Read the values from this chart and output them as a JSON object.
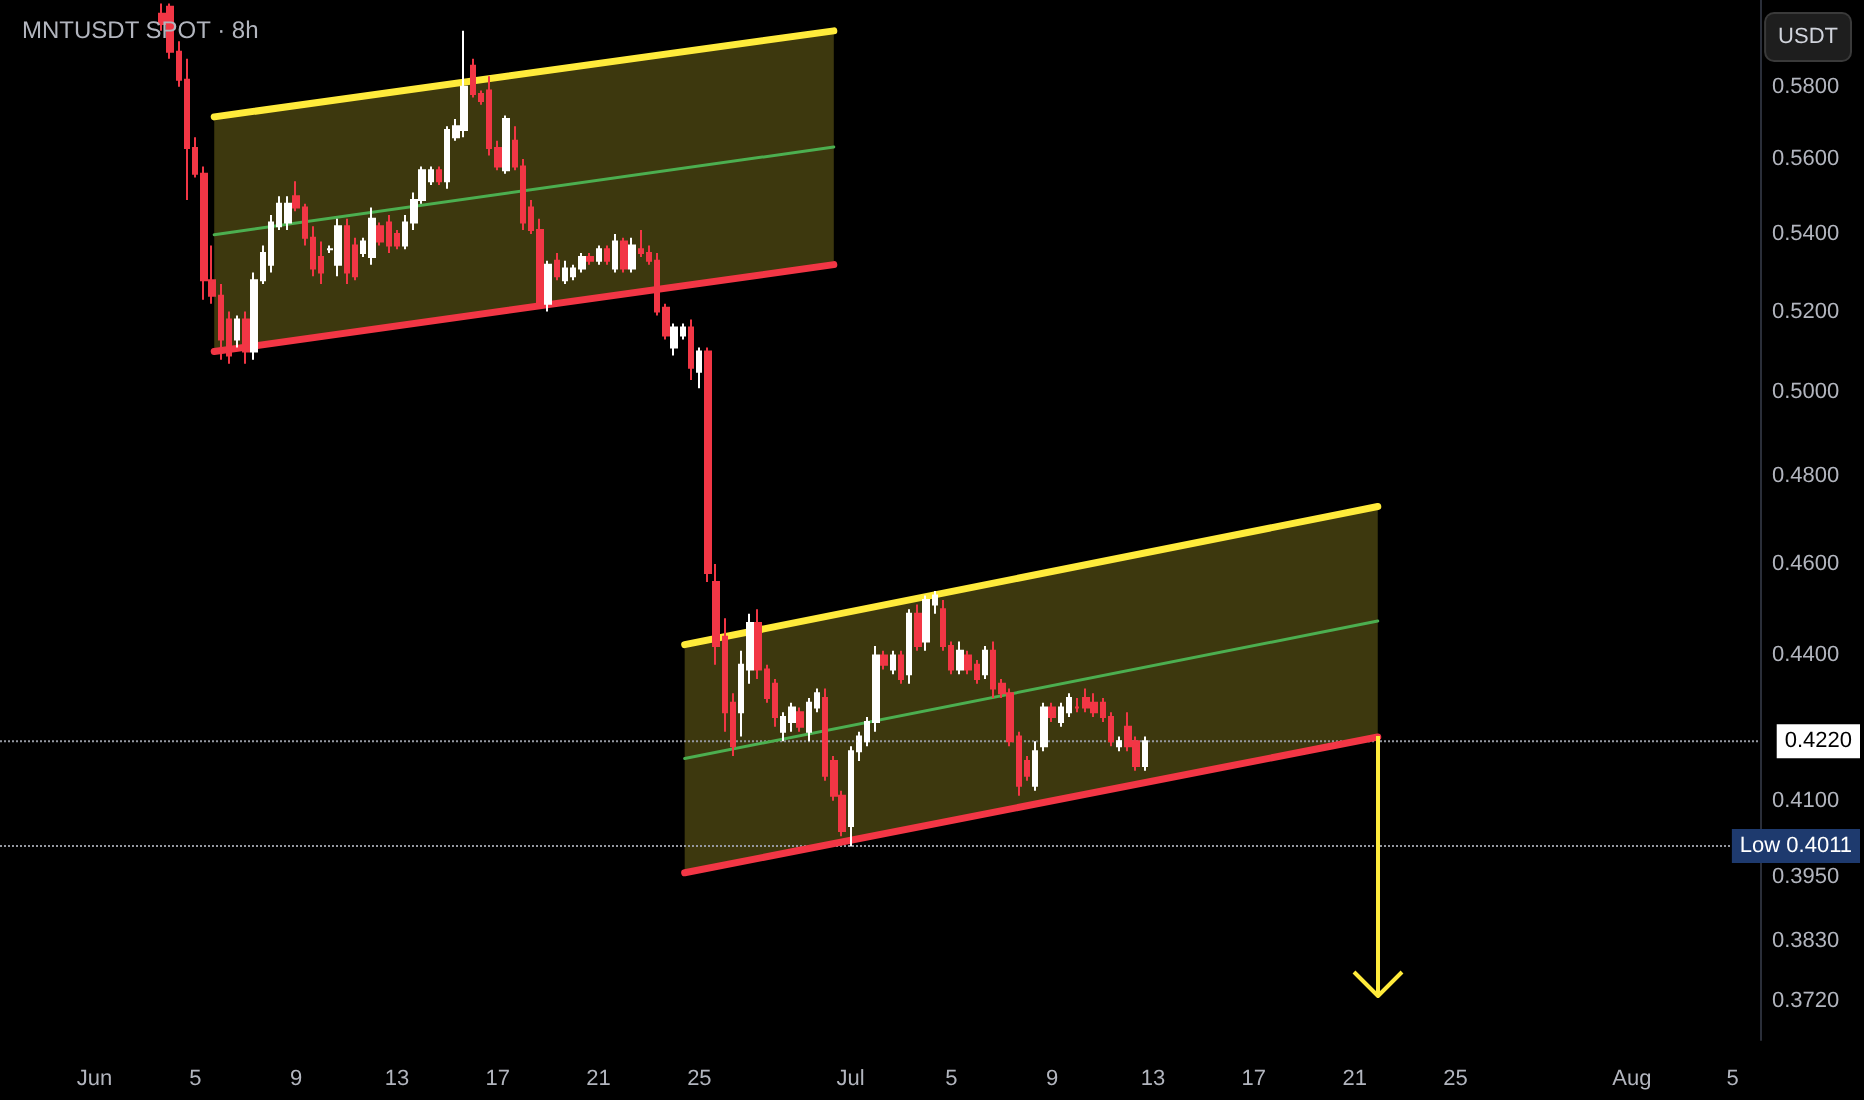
{
  "chart_data": {
    "type": "candlestick",
    "title": "MNTUSDT SPOT · 8h",
    "annotations": [
      "USDT"
    ],
    "x": [
      "--06-03T16:00",
      "--06-04T00:00",
      "--06-04T08:00",
      "--06-04T16:00",
      "--06-05T00:00",
      "--06-05T08:00",
      "--06-05T16:00",
      "--06-06T00:00",
      "--06-06T08:00",
      "--06-06T16:00",
      "--06-07T00:00",
      "--06-07T08:00",
      "--06-07T16:00",
      "--06-08T00:00",
      "--06-08T08:00",
      "--06-08T16:00",
      "--06-09T00:00",
      "--06-09T08:00",
      "--06-09T16:00",
      "--06-10T00:00",
      "--06-10T08:00",
      "--06-10T16:00",
      "--06-11T00:00",
      "--06-11T08:00",
      "--06-11T16:00",
      "--06-12T00:00",
      "--06-12T08:00",
      "--06-12T16:00",
      "--06-13T00:00",
      "--06-13T08:00",
      "--06-13T16:00",
      "--06-14T00:00",
      "--06-14T08:00",
      "--06-14T16:00",
      "--06-15T00:00",
      "--06-15T08:00",
      "--06-15T16:00",
      "--06-16T00:00",
      "--06-16T08:00",
      "--06-16T16:00",
      "--06-17T00:00",
      "--06-17T08:00",
      "--06-17T16:00",
      "--06-18T00:00",
      "--06-18T08:00",
      "--06-18T16:00",
      "--06-19T00:00",
      "--06-19T08:00",
      "--06-19T16:00",
      "--06-20T00:00",
      "--06-20T08:00",
      "--06-20T16:00",
      "--06-21T00:00",
      "--06-21T08:00",
      "--06-21T16:00",
      "--06-22T00:00",
      "--06-22T08:00",
      "--06-22T16:00",
      "--06-23T00:00",
      "--06-23T08:00",
      "--06-23T16:00",
      "--06-24T00:00",
      "--06-24T08:00",
      "--06-24T16:00",
      "--06-25T00:00",
      "--06-25T08:00",
      "--06-25T16:00",
      "--06-26T00:00",
      "--06-26T08:00",
      "--06-26T16:00",
      "--06-27T00:00",
      "--06-27T08:00",
      "--06-27T16:00",
      "--06-28T00:00",
      "--06-28T08:00",
      "--06-28T16:00",
      "--06-29T00:00",
      "--06-29T08:00",
      "--06-29T16:00",
      "--06-30T00:00",
      "--06-30T08:00",
      "--06-30T16:00",
      "--07-01T00:00",
      "--07-01T08:00",
      "--07-01T16:00",
      "--07-02T00:00",
      "--07-02T08:00",
      "--07-02T16:00",
      "--07-03T00:00",
      "--07-03T08:00",
      "--07-03T16:00",
      "--07-04T00:00",
      "--07-04T08:00",
      "--07-04T16:00",
      "--07-05T00:00",
      "--07-05T08:00",
      "--07-05T16:00",
      "--07-06T00:00",
      "--07-06T08:00",
      "--07-06T16:00",
      "--07-07T00:00",
      "--07-07T08:00",
      "--07-07T16:00",
      "--07-08T00:00",
      "--07-08T08:00",
      "--07-08T16:00",
      "--07-09T00:00",
      "--07-09T08:00",
      "--07-09T16:00",
      "--07-10T00:00",
      "--07-10T08:00",
      "--07-10T16:00",
      "--07-11T00:00",
      "--07-11T08:00",
      "--07-11T16:00",
      "--07-12T00:00",
      "--07-12T08:00",
      "--07-12T16:00"
    ],
    "ohlc": [
      [
        0.601,
        0.604,
        0.596,
        0.598
      ],
      [
        0.603,
        0.604,
        0.588,
        0.59
      ],
      [
        0.59,
        0.593,
        0.58,
        0.582
      ],
      [
        0.582,
        0.588,
        0.549,
        0.563
      ],
      [
        0.563,
        0.566,
        0.555,
        0.556
      ],
      [
        0.556,
        0.558,
        0.523,
        0.528
      ],
      [
        0.528,
        0.537,
        0.522,
        0.524
      ],
      [
        0.524,
        0.527,
        0.508,
        0.513
      ],
      [
        0.518,
        0.52,
        0.507,
        0.509
      ],
      [
        0.513,
        0.519,
        0.511,
        0.518
      ],
      [
        0.518,
        0.52,
        0.507,
        0.51
      ],
      [
        0.51,
        0.53,
        0.508,
        0.528
      ],
      [
        0.528,
        0.537,
        0.527,
        0.535
      ],
      [
        0.532,
        0.545,
        0.53,
        0.543
      ],
      [
        0.542,
        0.55,
        0.541,
        0.548
      ],
      [
        0.543,
        0.55,
        0.541,
        0.548
      ],
      [
        0.55,
        0.554,
        0.546,
        0.547
      ],
      [
        0.547,
        0.548,
        0.537,
        0.539
      ],
      [
        0.539,
        0.542,
        0.529,
        0.531
      ],
      [
        0.534,
        0.538,
        0.527,
        0.53
      ],
      [
        0.536,
        0.537,
        0.535,
        0.536
      ],
      [
        0.532,
        0.544,
        0.529,
        0.542
      ],
      [
        0.542,
        0.544,
        0.527,
        0.53
      ],
      [
        0.537,
        0.539,
        0.528,
        0.529
      ],
      [
        0.535,
        0.539,
        0.534,
        0.538
      ],
      [
        0.534,
        0.547,
        0.532,
        0.544
      ],
      [
        0.542,
        0.543,
        0.537,
        0.538
      ],
      [
        0.543,
        0.545,
        0.535,
        0.537
      ],
      [
        0.54,
        0.541,
        0.536,
        0.537
      ],
      [
        0.537,
        0.545,
        0.536,
        0.543
      ],
      [
        0.543,
        0.551,
        0.541,
        0.549
      ],
      [
        0.549,
        0.558,
        0.548,
        0.557
      ],
      [
        0.554,
        0.558,
        0.553,
        0.557
      ],
      [
        0.557,
        0.558,
        0.553,
        0.554
      ],
      [
        0.554,
        0.569,
        0.552,
        0.568
      ],
      [
        0.566,
        0.571,
        0.565,
        0.569
      ],
      [
        0.568,
        0.596,
        0.566,
        0.58
      ],
      [
        0.586,
        0.588,
        0.577,
        0.578
      ],
      [
        0.578,
        0.579,
        0.575,
        0.576
      ],
      [
        0.579,
        0.583,
        0.561,
        0.563
      ],
      [
        0.563,
        0.565,
        0.557,
        0.558
      ],
      [
        0.557,
        0.572,
        0.556,
        0.571
      ],
      [
        0.565,
        0.569,
        0.557,
        0.558
      ],
      [
        0.558,
        0.56,
        0.541,
        0.543
      ],
      [
        0.547,
        0.549,
        0.54,
        0.541
      ],
      [
        0.541,
        0.544,
        0.521,
        0.522
      ],
      [
        0.522,
        0.533,
        0.52,
        0.532
      ],
      [
        0.533,
        0.535,
        0.528,
        0.529
      ],
      [
        0.528,
        0.533,
        0.527,
        0.531
      ],
      [
        0.529,
        0.532,
        0.528,
        0.531
      ],
      [
        0.531,
        0.535,
        0.53,
        0.534
      ],
      [
        0.534,
        0.535,
        0.532,
        0.533
      ],
      [
        0.533,
        0.537,
        0.532,
        0.536
      ],
      [
        0.536,
        0.537,
        0.532,
        0.533
      ],
      [
        0.531,
        0.54,
        0.53,
        0.538
      ],
      [
        0.538,
        0.539,
        0.53,
        0.531
      ],
      [
        0.531,
        0.539,
        0.53,
        0.537
      ],
      [
        0.536,
        0.541,
        0.534,
        0.535
      ],
      [
        0.535,
        0.537,
        0.532,
        0.533
      ],
      [
        0.533,
        0.535,
        0.519,
        0.52
      ],
      [
        0.521,
        0.522,
        0.513,
        0.514
      ],
      [
        0.511,
        0.517,
        0.509,
        0.516
      ],
      [
        0.514,
        0.517,
        0.513,
        0.516
      ],
      [
        0.516,
        0.518,
        0.503,
        0.506
      ],
      [
        0.505,
        0.511,
        0.501,
        0.51
      ],
      [
        0.51,
        0.511,
        0.456,
        0.458
      ],
      [
        0.456,
        0.46,
        0.438,
        0.442
      ],
      [
        0.444,
        0.448,
        0.424,
        0.428
      ],
      [
        0.43,
        0.432,
        0.419,
        0.421
      ],
      [
        0.428,
        0.441,
        0.423,
        0.438
      ],
      [
        0.437,
        0.449,
        0.434,
        0.447
      ],
      [
        0.447,
        0.45,
        0.435,
        0.437
      ],
      [
        0.437,
        0.438,
        0.43,
        0.431
      ],
      [
        0.434,
        0.435,
        0.425,
        0.427
      ],
      [
        0.424,
        0.428,
        0.422,
        0.427
      ],
      [
        0.426,
        0.43,
        0.424,
        0.429
      ],
      [
        0.428,
        0.429,
        0.424,
        0.425
      ],
      [
        0.424,
        0.431,
        0.422,
        0.43
      ],
      [
        0.429,
        0.433,
        0.428,
        0.432
      ],
      [
        0.431,
        0.433,
        0.414,
        0.415
      ],
      [
        0.418,
        0.419,
        0.41,
        0.411
      ],
      [
        0.411,
        0.412,
        0.403,
        0.404
      ],
      [
        0.405,
        0.421,
        0.401,
        0.42
      ],
      [
        0.42,
        0.424,
        0.418,
        0.423
      ],
      [
        0.422,
        0.427,
        0.421,
        0.426
      ],
      [
        0.426,
        0.442,
        0.424,
        0.44
      ],
      [
        0.44,
        0.441,
        0.437,
        0.438
      ],
      [
        0.437,
        0.441,
        0.436,
        0.44
      ],
      [
        0.44,
        0.441,
        0.434,
        0.435
      ],
      [
        0.436,
        0.45,
        0.434,
        0.449
      ],
      [
        0.449,
        0.451,
        0.441,
        0.442
      ],
      [
        0.443,
        0.453,
        0.441,
        0.452
      ],
      [
        0.451,
        0.454,
        0.449,
        0.453
      ],
      [
        0.45,
        0.452,
        0.441,
        0.442
      ],
      [
        0.442,
        0.443,
        0.436,
        0.437
      ],
      [
        0.437,
        0.443,
        0.436,
        0.441
      ],
      [
        0.44,
        0.441,
        0.436,
        0.437
      ],
      [
        0.438,
        0.439,
        0.434,
        0.435
      ],
      [
        0.436,
        0.442,
        0.435,
        0.441
      ],
      [
        0.441,
        0.443,
        0.431,
        0.433
      ],
      [
        0.434,
        0.435,
        0.431,
        0.432
      ],
      [
        0.432,
        0.433,
        0.421,
        0.422
      ],
      [
        0.423,
        0.424,
        0.411,
        0.413
      ],
      [
        0.418,
        0.419,
        0.414,
        0.415
      ],
      [
        0.413,
        0.422,
        0.412,
        0.42
      ],
      [
        0.421,
        0.43,
        0.42,
        0.429
      ],
      [
        0.429,
        0.43,
        0.426,
        0.427
      ],
      [
        0.426,
        0.43,
        0.425,
        0.429
      ],
      [
        0.428,
        0.432,
        0.427,
        0.431
      ],
      [
        0.429,
        0.431,
        0.428,
        0.429
      ],
      [
        0.431,
        0.433,
        0.428,
        0.429
      ],
      [
        0.43,
        0.432,
        0.427,
        0.428
      ],
      [
        0.43,
        0.431,
        0.426,
        0.427
      ],
      [
        0.427,
        0.428,
        0.421,
        0.422
      ],
      [
        0.421,
        0.423,
        0.42,
        0.422
      ],
      [
        0.425,
        0.428,
        0.42,
        0.421
      ],
      [
        0.422,
        0.423,
        0.416,
        0.417
      ],
      [
        0.417,
        0.423,
        0.416,
        0.422
      ]
    ],
    "series": [
      {
        "type": "line",
        "color": "#ffeb3b",
        "x": [
          "--06-05T18:00",
          "--06-30T08:00"
        ],
        "values": [
          0.5716,
          0.596
        ]
      },
      {
        "type": "line",
        "color": "#f23645",
        "x": [
          "--06-05T18:00",
          "--06-30T08:00"
        ],
        "values": [
          0.51,
          0.532
        ]
      },
      {
        "type": "line",
        "color": "#4caf50",
        "x": [
          "--06-05T18:00",
          "--06-30T08:00"
        ],
        "values": [
          0.5398,
          0.5633
        ],
        "lower": [
          0.51,
          0.532
        ],
        "upper": [
          0.5716,
          0.596
        ]
      },
      {
        "type": "line",
        "color": "#ffeb3b",
        "x": [
          "--06-24T10:00",
          "--07-21T22:00"
        ],
        "values": [
          0.4423,
          0.473
        ]
      },
      {
        "type": "line",
        "color": "#f23645",
        "x": [
          "--06-24T10:00",
          "--07-21T22:00"
        ],
        "values": [
          0.3959,
          0.4229
        ]
      },
      {
        "type": "line",
        "color": "#4caf50",
        "x": [
          "--06-24T10:00",
          "--07-21T22:00"
        ],
        "values": [
          0.4185,
          0.4474
        ],
        "lower": [
          0.3959,
          0.4229
        ],
        "upper": [
          0.4423,
          0.473
        ]
      }
    ],
    "ref_lines": [
      {
        "axis": "y",
        "value": 0.422,
        "label": "0.4220",
        "color": "#9598a1",
        "line_style": "dotted"
      },
      {
        "axis": "y",
        "value": 0.4011,
        "label": "Low 0.4011",
        "color": "#9598a1",
        "line_style": "dotted"
      }
    ],
    "xlim": [
      "--05-28T06:00",
      "--08-06T02:00"
    ],
    "xticks": [
      {
        "value": "--06-01",
        "label": "Jun"
      },
      {
        "value": "--06-05",
        "label": "5"
      },
      {
        "value": "--06-09",
        "label": "9"
      },
      {
        "value": "--06-13",
        "label": "13"
      },
      {
        "value": "--06-17",
        "label": "17"
      },
      {
        "value": "--06-21",
        "label": "21"
      },
      {
        "value": "--06-25",
        "label": "25"
      },
      {
        "value": "--07-01",
        "label": "Jul"
      },
      {
        "value": "--07-05",
        "label": "5"
      },
      {
        "value": "--07-09",
        "label": "9"
      },
      {
        "value": "--07-13",
        "label": "13"
      },
      {
        "value": "--07-17",
        "label": "17"
      },
      {
        "value": "--07-21",
        "label": "21"
      },
      {
        "value": "--07-25",
        "label": "25"
      },
      {
        "value": "--08-01",
        "label": "Aug"
      },
      {
        "value": "--08-05",
        "label": "5"
      }
    ],
    "ylim": [
      0.365,
      0.605
    ],
    "yticks": [
      {
        "value": 0.372,
        "label": "0.3720"
      },
      {
        "value": 0.383,
        "label": "0.3830"
      },
      {
        "value": 0.395,
        "label": "0.3950"
      },
      {
        "value": 0.41,
        "label": "0.4100"
      },
      {
        "value": 0.44,
        "label": "0.4400"
      },
      {
        "value": 0.46,
        "label": "0.4600"
      },
      {
        "value": 0.48,
        "label": "0.4800"
      },
      {
        "value": 0.5,
        "label": "0.5000"
      },
      {
        "value": 0.52,
        "label": "0.5200"
      },
      {
        "value": 0.54,
        "label": "0.5400"
      },
      {
        "value": 0.56,
        "label": "0.5600"
      },
      {
        "value": 0.58,
        "label": "0.5800"
      }
    ],
    "log": true,
    "grid": false
  }
}
